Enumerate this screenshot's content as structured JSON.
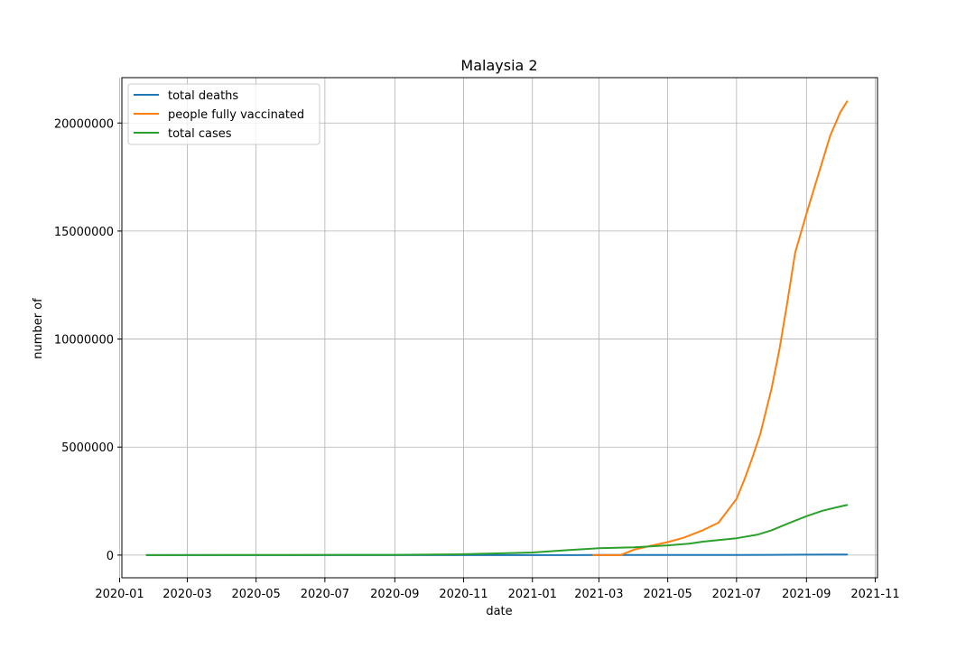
{
  "chart_data": {
    "type": "line",
    "title": "Malaysia 2",
    "xlabel": "date",
    "ylabel": "number of",
    "x_ticks": [
      "2020-01-01",
      "2020-03-01",
      "2020-05-01",
      "2020-07-01",
      "2020-09-01",
      "2020-11-01",
      "2021-01-01",
      "2021-03-01",
      "2021-05-01",
      "2021-07-01",
      "2021-09-01",
      "2021-11-01"
    ],
    "x_tick_labels": [
      "2020-01",
      "2020-03",
      "2020-05",
      "2020-07",
      "2020-09",
      "2020-11",
      "2021-01",
      "2021-03",
      "2021-05",
      "2021-07",
      "2021-09",
      "2021-11"
    ],
    "xlim": [
      "2020-01-03",
      "2021-11-03"
    ],
    "y_ticks": [
      0,
      5000000,
      10000000,
      15000000,
      20000000
    ],
    "y_tick_labels": [
      "0",
      "5000000",
      "10000000",
      "15000000",
      "20000000"
    ],
    "ylim": [
      -1050000,
      22100000
    ],
    "grid": true,
    "legend_position": "top-left",
    "series": [
      {
        "name": "total deaths",
        "color": "#1f77b4",
        "points": [
          [
            "2020-01-25",
            0
          ],
          [
            "2020-03-17",
            0
          ],
          [
            "2020-07-01",
            120
          ],
          [
            "2020-11-01",
            250
          ],
          [
            "2021-01-01",
            500
          ],
          [
            "2021-03-01",
            1200
          ],
          [
            "2021-05-01",
            1700
          ],
          [
            "2021-06-01",
            3000
          ],
          [
            "2021-07-01",
            6000
          ],
          [
            "2021-08-01",
            12000
          ],
          [
            "2021-09-01",
            20000
          ],
          [
            "2021-10-07",
            27000
          ]
        ]
      },
      {
        "name": "people fully vaccinated",
        "color": "#ff7f0e",
        "points": [
          [
            "2021-02-24",
            0
          ],
          [
            "2021-03-20",
            0
          ],
          [
            "2021-04-01",
            250000
          ],
          [
            "2021-04-15",
            420000
          ],
          [
            "2021-05-01",
            600000
          ],
          [
            "2021-05-15",
            800000
          ],
          [
            "2021-06-01",
            1150000
          ],
          [
            "2021-06-15",
            1500000
          ],
          [
            "2021-07-01",
            2600000
          ],
          [
            "2021-07-08",
            3500000
          ],
          [
            "2021-07-15",
            4500000
          ],
          [
            "2021-07-22",
            5600000
          ],
          [
            "2021-08-01",
            7700000
          ],
          [
            "2021-08-08",
            9500000
          ],
          [
            "2021-08-15",
            11700000
          ],
          [
            "2021-08-22",
            14000000
          ],
          [
            "2021-09-01",
            15800000
          ],
          [
            "2021-09-08",
            17000000
          ],
          [
            "2021-09-15",
            18200000
          ],
          [
            "2021-09-22",
            19400000
          ],
          [
            "2021-10-01",
            20500000
          ],
          [
            "2021-10-07",
            21000000
          ]
        ]
      },
      {
        "name": "total cases",
        "color": "#2ca02c",
        "points": [
          [
            "2020-01-25",
            0
          ],
          [
            "2020-04-01",
            3000
          ],
          [
            "2020-06-01",
            8000
          ],
          [
            "2020-09-01",
            10000
          ],
          [
            "2020-11-01",
            40000
          ],
          [
            "2020-12-01",
            80000
          ],
          [
            "2021-01-01",
            120000
          ],
          [
            "2021-02-01",
            230000
          ],
          [
            "2021-03-01",
            320000
          ],
          [
            "2021-04-01",
            360000
          ],
          [
            "2021-05-01",
            450000
          ],
          [
            "2021-05-20",
            530000
          ],
          [
            "2021-06-01",
            620000
          ],
          [
            "2021-07-01",
            780000
          ],
          [
            "2021-07-20",
            950000
          ],
          [
            "2021-08-01",
            1150000
          ],
          [
            "2021-08-15",
            1450000
          ],
          [
            "2021-09-01",
            1800000
          ],
          [
            "2021-09-15",
            2050000
          ],
          [
            "2021-10-01",
            2250000
          ],
          [
            "2021-10-07",
            2320000
          ]
        ]
      }
    ]
  }
}
